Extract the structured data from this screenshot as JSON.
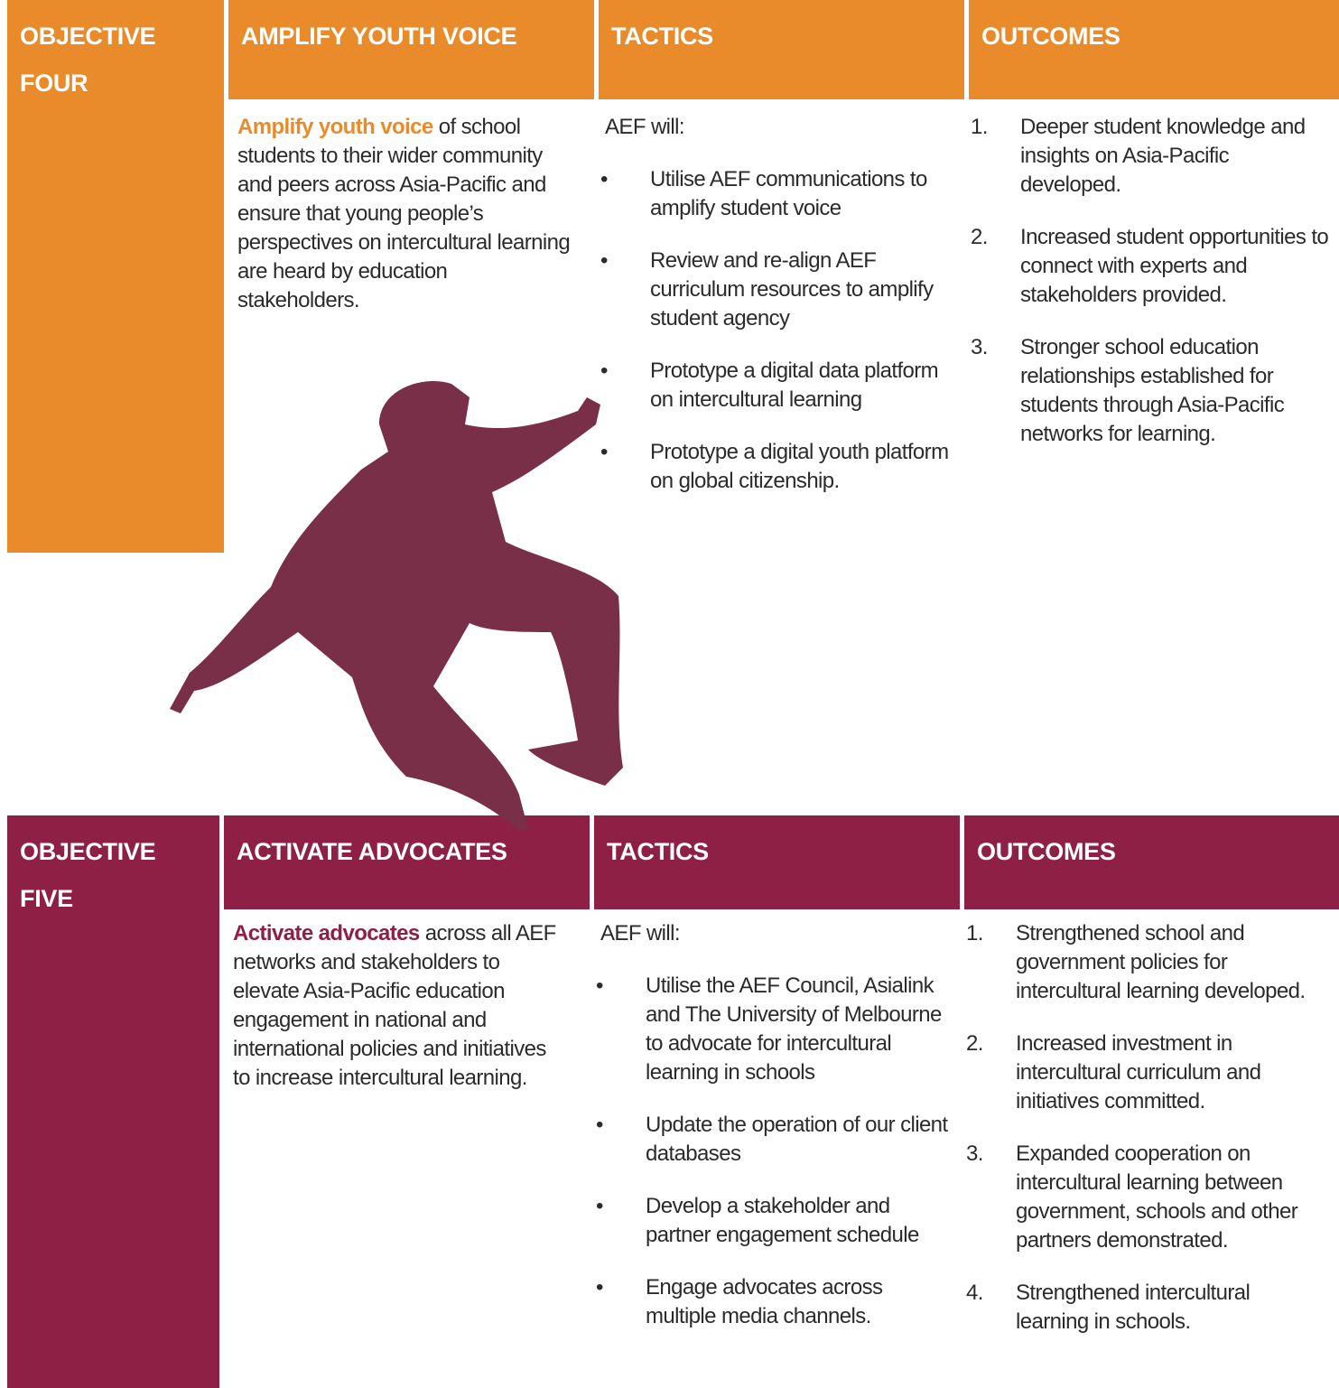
{
  "sections": [
    {
      "header": {
        "objective": "OBJECTIVE FOUR",
        "title": "AMPLIFY YOUTH VOICE",
        "tactics": "TACTICS",
        "outcomes": "OUTCOMES"
      },
      "intro": {
        "lead": "Amplify youth voice",
        "rest": "of school students to their wider community and peers across Asia-Pacific and ensure that young people’s perspectives on intercultural learning are heard by education stakeholders."
      },
      "tactics_intro": "AEF will:",
      "tactics": [
        "Utilise AEF communications to amplify student voice",
        "Review and re-align AEF curriculum resources to amplify student agency",
        "Prototype a digital data platform on intercultural learning",
        "Prototype a digital youth platform on global citizenship."
      ],
      "outcomes": [
        {
          "number": "1.",
          "text": "Deeper student knowledge and insights on Asia-Pacific developed."
        },
        {
          "number": "2.",
          "text": "Increased student opportunities to connect with experts and stakeholders provided."
        },
        {
          "number": "3.",
          "text": "Stronger school education relationships established for students through Asia-Pacific networks for learning."
        }
      ]
    },
    {
      "header": {
        "objective": "OBJECTIVE FIVE",
        "title": "ACTIVATE ADVOCATES",
        "tactics": "TACTICS",
        "outcomes": "OUTCOMES"
      },
      "intro": {
        "lead": "Activate advocates",
        "rest": "across all AEF networks and stakeholders to elevate Asia-Pacific education engagement in national and international policies and initiatives to increase intercultural learning."
      },
      "tactics_intro": "AEF will:",
      "tactics": [
        "Utilise the AEF Council, Asialink and The University of Melbourne to advocate for intercultural learning in schools",
        "Update the operation of our client databases",
        "Develop a stakeholder and partner engagement schedule",
        "Engage advocates across multiple media channels."
      ],
      "outcomes": [
        {
          "number": "1.",
          "text": "Strengthened school and government policies for intercultural learning developed."
        },
        {
          "number": "2.",
          "text": "Increased investment in intercultural curriculum and initiatives committed."
        },
        {
          "number": "3.",
          "text": "Expanded cooperation on intercultural learning between government, schools and other partners demonstrated."
        },
        {
          "number": "4.",
          "text": "Strengthened intercultural learning in schools."
        }
      ]
    }
  ]
}
